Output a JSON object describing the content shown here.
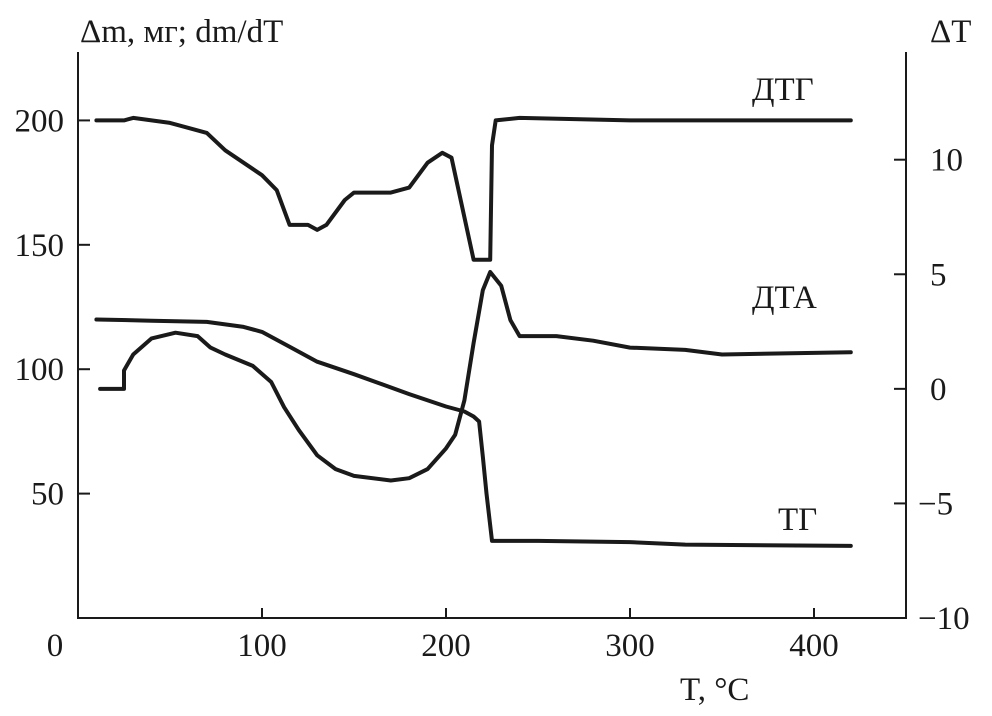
{
  "chart_data": {
    "type": "line",
    "xlabel": "T, °C",
    "ylabel_left": "Δm, мг; dm/dT",
    "ylabel_right": "ΔT",
    "xlim": [
      0,
      450
    ],
    "ylim_left": [
      0,
      227.5
    ],
    "ylim_right": [
      -10,
      14.7
    ],
    "x_ticks": [
      0,
      100,
      200,
      300,
      400
    ],
    "y_ticks_left": [
      50,
      100,
      150,
      200
    ],
    "y_ticks_right": [
      -10,
      -5,
      0,
      5,
      10
    ],
    "grid": false,
    "line_color": "#1a1a1a",
    "series": [
      {
        "name": "ДТГ",
        "axis": "left",
        "points": [
          [
            10,
            200
          ],
          [
            25,
            200
          ],
          [
            30,
            201
          ],
          [
            50,
            199
          ],
          [
            70,
            195
          ],
          [
            80,
            188
          ],
          [
            100,
            178
          ],
          [
            108,
            172
          ],
          [
            115,
            158
          ],
          [
            125,
            158
          ],
          [
            130,
            156
          ],
          [
            135,
            158
          ],
          [
            145,
            168
          ],
          [
            150,
            171
          ],
          [
            170,
            171
          ],
          [
            180,
            173
          ],
          [
            190,
            183
          ],
          [
            198,
            187
          ],
          [
            203,
            185
          ],
          [
            215,
            144
          ],
          [
            220,
            144
          ],
          [
            224,
            144
          ],
          [
            225,
            190
          ],
          [
            227,
            200
          ],
          [
            240,
            201
          ],
          [
            300,
            200
          ],
          [
            420,
            200
          ]
        ]
      },
      {
        "name": "ДТА",
        "axis": "right",
        "points": [
          [
            12,
            0
          ],
          [
            25,
            0
          ],
          [
            25,
            0.8
          ],
          [
            30,
            1.5
          ],
          [
            40,
            2.2
          ],
          [
            53,
            2.45
          ],
          [
            65,
            2.3
          ],
          [
            72,
            1.8
          ],
          [
            80,
            1.5
          ],
          [
            95,
            1.0
          ],
          [
            105,
            0.3
          ],
          [
            112,
            -0.8
          ],
          [
            120,
            -1.8
          ],
          [
            130,
            -2.9
          ],
          [
            140,
            -3.5
          ],
          [
            150,
            -3.8
          ],
          [
            170,
            -4.0
          ],
          [
            180,
            -3.9
          ],
          [
            190,
            -3.5
          ],
          [
            200,
            -2.6
          ],
          [
            205,
            -2.0
          ],
          [
            210,
            -0.5
          ],
          [
            215,
            2.0
          ],
          [
            220,
            4.3
          ],
          [
            224,
            5.1
          ],
          [
            230,
            4.5
          ],
          [
            235,
            3.0
          ],
          [
            240,
            2.3
          ],
          [
            260,
            2.3
          ],
          [
            280,
            2.1
          ],
          [
            300,
            1.8
          ],
          [
            330,
            1.7
          ],
          [
            350,
            1.5
          ],
          [
            420,
            1.6
          ]
        ]
      },
      {
        "name": "ТГ",
        "axis": "left",
        "points": [
          [
            10,
            120
          ],
          [
            40,
            119.5
          ],
          [
            70,
            119
          ],
          [
            90,
            117
          ],
          [
            100,
            115
          ],
          [
            115,
            109
          ],
          [
            130,
            103
          ],
          [
            150,
            98
          ],
          [
            180,
            90
          ],
          [
            200,
            85
          ],
          [
            210,
            83
          ],
          [
            215,
            81
          ],
          [
            218,
            79
          ],
          [
            220,
            65
          ],
          [
            222,
            50
          ],
          [
            225,
            31
          ],
          [
            250,
            31
          ],
          [
            300,
            30.5
          ],
          [
            330,
            29.5
          ],
          [
            420,
            29
          ]
        ]
      }
    ]
  }
}
